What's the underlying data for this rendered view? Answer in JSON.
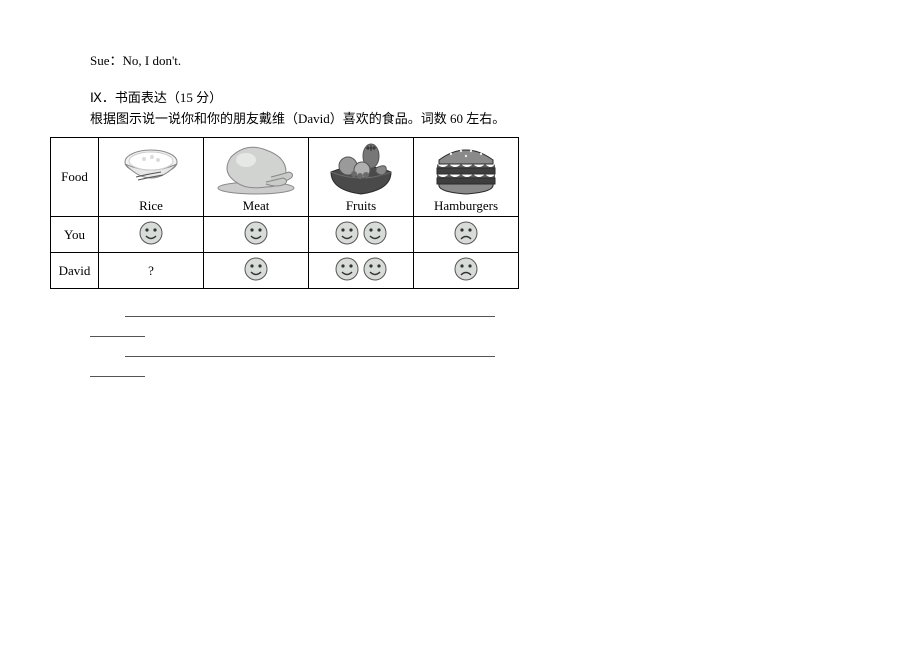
{
  "dialogue": {
    "line": "Sue：No, I don't."
  },
  "section": {
    "title": "Ⅸ．书面表达（15 分）",
    "desc": "根据图示说一说你和你的朋友戴维（David）喜欢的食品。词数 60 左右。"
  },
  "table": {
    "header_label": "Food",
    "row_you_label": "You",
    "row_david_label": "David",
    "foods": [
      {
        "key": "rice",
        "caption": "Rice"
      },
      {
        "key": "meat",
        "caption": "Meat"
      },
      {
        "key": "fruits",
        "caption": "Fruits"
      },
      {
        "key": "hamburgers",
        "caption": "Hamburgers"
      }
    ],
    "you": {
      "rice": {
        "faces": [
          "happy"
        ]
      },
      "meat": {
        "faces": [
          "happy"
        ]
      },
      "fruits": {
        "faces": [
          "happy",
          "happy"
        ]
      },
      "hamburgers": {
        "faces": [
          "sad"
        ]
      }
    },
    "david": {
      "rice": {
        "text": "?"
      },
      "meat": {
        "faces": [
          "happy"
        ]
      },
      "fruits": {
        "faces": [
          "happy",
          "happy"
        ]
      },
      "hamburgers": {
        "faces": [
          "sad"
        ]
      }
    }
  },
  "colors": {
    "face_fill": "#d8dcd8",
    "face_stroke": "#555555",
    "face_stroke_dark": "#333333",
    "gray_light": "#cccccc",
    "gray_mid": "#888888",
    "gray_dark": "#555555",
    "black": "#2a2a2a"
  },
  "sizes": {
    "face_r": 11,
    "food_svg_w": 90,
    "food_svg_h": 54
  }
}
